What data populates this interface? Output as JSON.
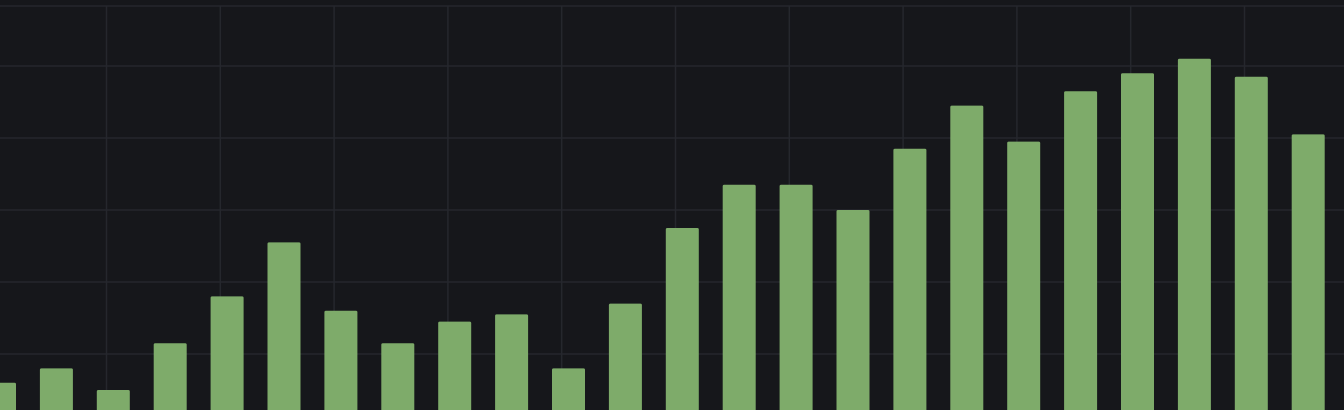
{
  "colors": {
    "background": "#16171b",
    "grid": "#25272d",
    "bar": "#7eab6a"
  },
  "chart_data": {
    "type": "bar",
    "title": "",
    "xlabel": "",
    "ylabel": "",
    "grid": true,
    "legend": "none",
    "ylim": [
      0,
      100
    ],
    "series": [
      {
        "values": [
          12,
          16,
          10,
          23,
          36,
          51,
          32,
          23,
          29,
          31,
          16,
          34,
          55,
          67,
          67,
          60,
          77,
          89,
          79,
          93,
          98,
          102,
          97,
          81
        ]
      }
    ]
  }
}
